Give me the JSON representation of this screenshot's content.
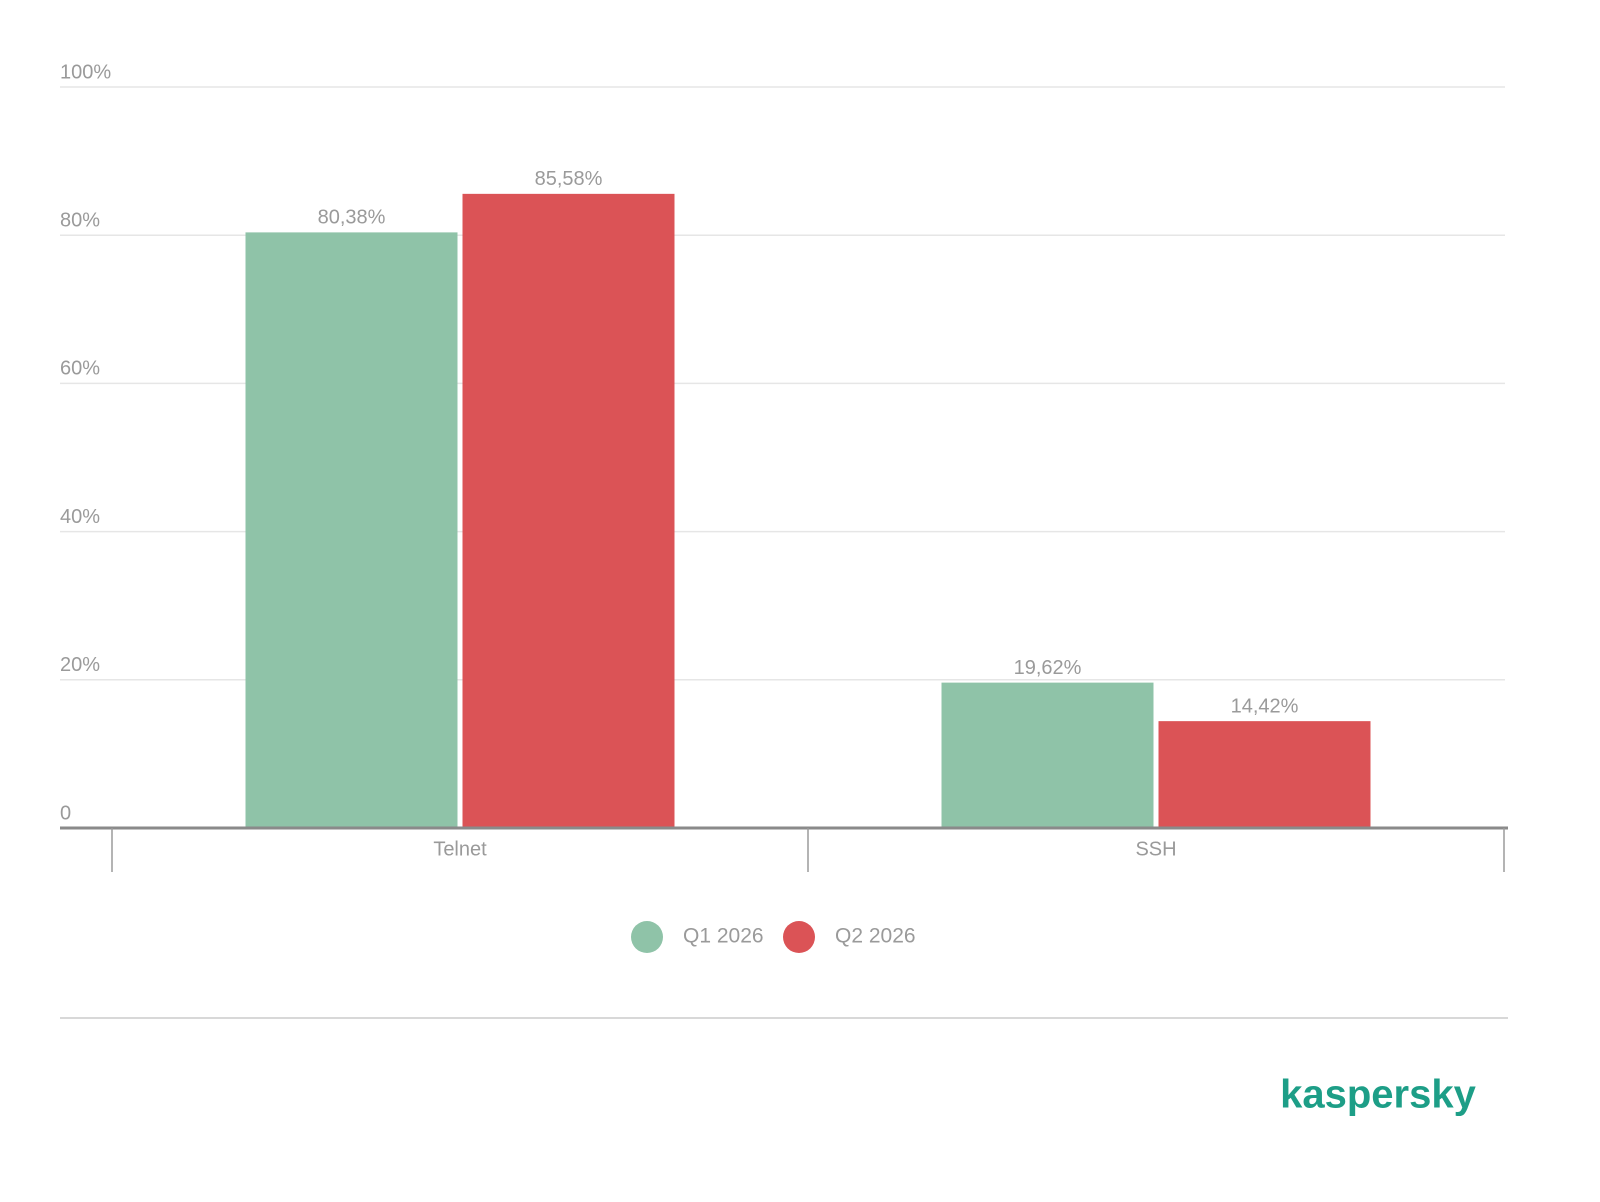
{
  "chart_data": {
    "type": "bar",
    "categories": [
      "Telnet",
      "SSH"
    ],
    "series": [
      {
        "name": "Q1 2026",
        "color": "#8fc3a8",
        "values": [
          80.38,
          19.62
        ],
        "value_labels": [
          "80,38%",
          "19,62%"
        ]
      },
      {
        "name": "Q2 2026",
        "color": "#db5356",
        "values": [
          85.58,
          14.42
        ],
        "value_labels": [
          "85,58%",
          "14,42%"
        ]
      }
    ],
    "ylim": [
      0,
      100
    ],
    "yticks": [
      0,
      {
        "value": 20,
        "label": "20%"
      },
      {
        "value": 40,
        "label": "40%"
      },
      {
        "value": 60,
        "label": "60%"
      },
      {
        "value": 80,
        "label": "80%"
      },
      {
        "value": 100,
        "label": "100%"
      }
    ],
    "grid": true,
    "legend": "bottom"
  },
  "footer": {
    "logo": "kaspersky"
  }
}
